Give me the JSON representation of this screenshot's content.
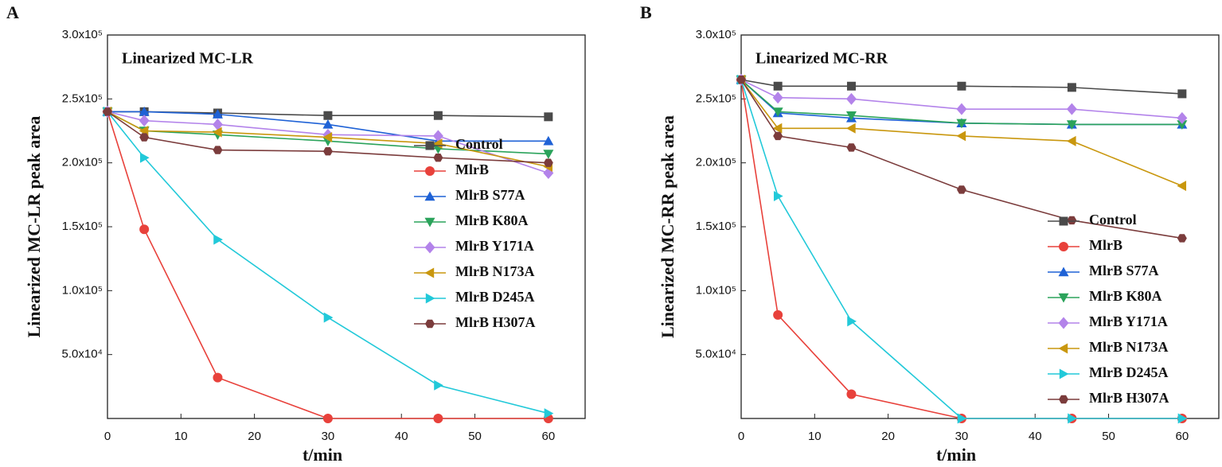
{
  "chart_data": [
    {
      "type": "line",
      "label": "A",
      "annotation": "Linearized MC-LR",
      "xlabel": "t/min",
      "ylabel": "Linearized MC-LR peak area",
      "x": [
        0,
        5,
        15,
        30,
        45,
        60
      ],
      "xlim": [
        0,
        65
      ],
      "xticks": [
        0,
        10,
        20,
        30,
        40,
        50,
        60
      ],
      "ylim": [
        0,
        300000
      ],
      "yticks": [
        {
          "value": 50000,
          "label": "5.0x10⁴"
        },
        {
          "value": 100000,
          "label": "1.0x10⁵"
        },
        {
          "value": 150000,
          "label": "1.5x10⁵"
        },
        {
          "value": 200000,
          "label": "2.0x10⁵"
        },
        {
          "value": 250000,
          "label": "2.5x10⁵"
        },
        {
          "value": 300000,
          "label": "3.0x10⁵"
        }
      ],
      "legend_position": "center right",
      "series": [
        {
          "name": "Control",
          "color": "#4a4a4a",
          "marker": "square",
          "values": [
            240000,
            240000,
            239000,
            237000,
            237000,
            236000
          ]
        },
        {
          "name": "MlrB",
          "color": "#e8413b",
          "marker": "circle",
          "values": [
            240000,
            148000,
            32000,
            0,
            0,
            0
          ]
        },
        {
          "name": "MlrB S77A",
          "color": "#1f62d6",
          "marker": "triangle-up",
          "values": [
            240000,
            240000,
            238000,
            230000,
            217000,
            217000
          ]
        },
        {
          "name": "MlrB K80A",
          "color": "#2ba35b",
          "marker": "triangle-down",
          "values": [
            240000,
            225000,
            222000,
            217000,
            211000,
            207000
          ]
        },
        {
          "name": "MlrB Y171A",
          "color": "#b383ea",
          "marker": "diamond",
          "values": [
            240000,
            233000,
            230000,
            222000,
            221000,
            192000
          ]
        },
        {
          "name": "MlrB N173A",
          "color": "#c9970e",
          "marker": "triangle-left",
          "values": [
            240000,
            225000,
            224000,
            220000,
            215000,
            197000
          ]
        },
        {
          "name": "MlrB D245A",
          "color": "#22c9d9",
          "marker": "triangle-right",
          "values": [
            240000,
            204000,
            140000,
            79000,
            26000,
            4000
          ]
        },
        {
          "name": "MlrB H307A",
          "color": "#7b3c3c",
          "marker": "hexagon",
          "values": [
            240000,
            220000,
            210000,
            209000,
            204000,
            200000
          ]
        }
      ]
    },
    {
      "type": "line",
      "label": "B",
      "annotation": "Linearized MC-RR",
      "xlabel": "t/min",
      "ylabel": "Linearized MC-RR peak area",
      "x": [
        0,
        5,
        15,
        30,
        45,
        60
      ],
      "xlim": [
        0,
        65
      ],
      "xticks": [
        0,
        10,
        20,
        30,
        40,
        50,
        60
      ],
      "ylim": [
        0,
        300000
      ],
      "yticks": [
        {
          "value": 50000,
          "label": "5.0x10⁴"
        },
        {
          "value": 100000,
          "label": "1.0x10⁵"
        },
        {
          "value": 150000,
          "label": "1.5x10⁵"
        },
        {
          "value": 200000,
          "label": "2.0x10⁵"
        },
        {
          "value": 250000,
          "label": "2.5x10⁵"
        },
        {
          "value": 300000,
          "label": "3.0x10⁵"
        }
      ],
      "legend_position": "lower right",
      "series": [
        {
          "name": "Control",
          "color": "#4a4a4a",
          "marker": "square",
          "values": [
            265000,
            260000,
            260000,
            260000,
            259000,
            254000
          ]
        },
        {
          "name": "MlrB",
          "color": "#e8413b",
          "marker": "circle",
          "values": [
            265000,
            81000,
            19000,
            0,
            0,
            0
          ]
        },
        {
          "name": "MlrB S77A",
          "color": "#1f62d6",
          "marker": "triangle-up",
          "values": [
            265000,
            239000,
            235000,
            231000,
            230000,
            230000
          ]
        },
        {
          "name": "MlrB K80A",
          "color": "#2ba35b",
          "marker": "triangle-down",
          "values": [
            265000,
            240000,
            237000,
            231000,
            230000,
            230000
          ]
        },
        {
          "name": "MlrB Y171A",
          "color": "#b383ea",
          "marker": "diamond",
          "values": [
            265000,
            251000,
            250000,
            242000,
            242000,
            235000
          ]
        },
        {
          "name": "MlrB N173A",
          "color": "#c9970e",
          "marker": "triangle-left",
          "values": [
            265000,
            227000,
            227000,
            221000,
            217000,
            182000
          ]
        },
        {
          "name": "MlrB D245A",
          "color": "#22c9d9",
          "marker": "triangle-right",
          "values": [
            265000,
            174000,
            76000,
            0,
            0,
            0
          ]
        },
        {
          "name": "MlrB H307A",
          "color": "#7b3c3c",
          "marker": "hexagon",
          "values": [
            265000,
            221000,
            212000,
            179000,
            155000,
            141000
          ]
        }
      ]
    }
  ]
}
